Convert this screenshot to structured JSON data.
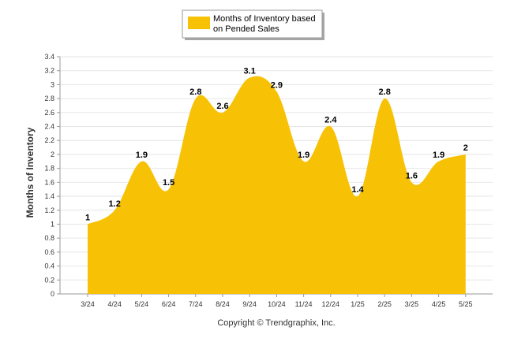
{
  "chart_data": {
    "type": "area",
    "categories": [
      "3/24",
      "4/24",
      "5/24",
      "6/24",
      "7/24",
      "8/24",
      "9/24",
      "10/24",
      "11/24",
      "12/24",
      "1/25",
      "2/25",
      "3/25",
      "4/25",
      "5/25"
    ],
    "series": [
      {
        "name": "Months of Inventory based on Pended Sales",
        "values": [
          1,
          1.2,
          1.9,
          1.5,
          2.8,
          2.6,
          3.1,
          2.9,
          1.9,
          2.4,
          1.4,
          2.8,
          1.6,
          1.9,
          2
        ],
        "color": "#F7C206"
      }
    ],
    "ylabel": "Months of Inventory",
    "ylim": [
      0,
      3.4
    ],
    "yticks": [
      "0",
      "0.2",
      "0.4",
      "0.6",
      "0.8",
      "1",
      "1.2",
      "1.4",
      "1.6",
      "1.8",
      "2",
      "2.2",
      "2.4",
      "2.6",
      "2.8",
      "3",
      "3.2",
      "3.4"
    ],
    "legend_lines": [
      "Months of Inventory based",
      "on Pended Sales"
    ],
    "legend_position": "top-center",
    "grid": true,
    "copyright": "Copyright © Trendgraphix, Inc."
  }
}
